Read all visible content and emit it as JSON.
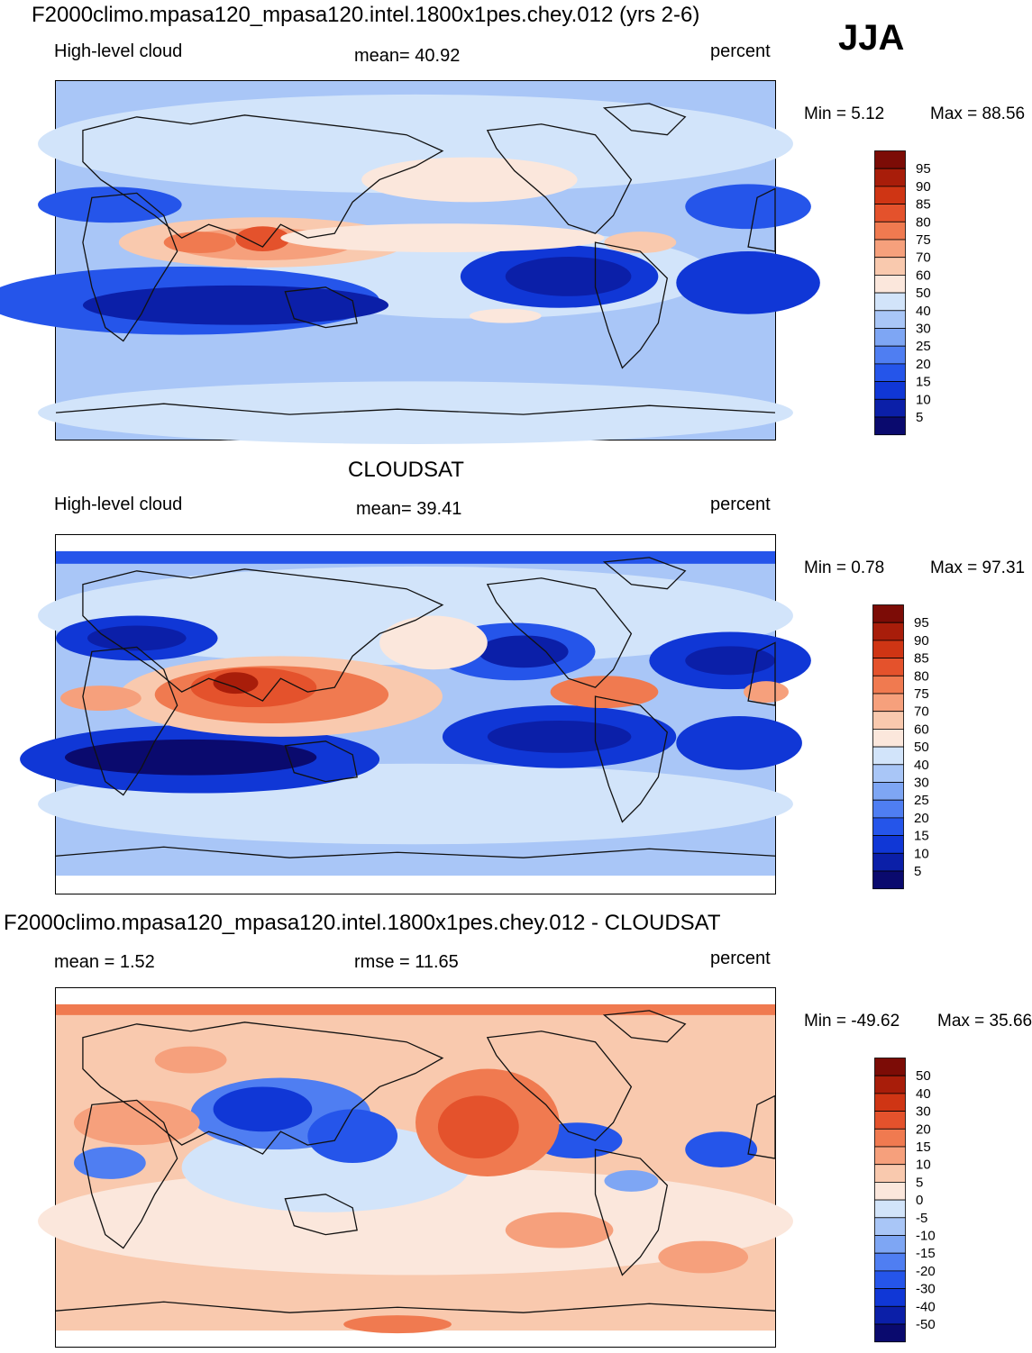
{
  "season": "JJA",
  "colors": {
    "scale": [
      "#0a0a6e",
      "#0b1fa8",
      "#1037d6",
      "#2555ea",
      "#4f7ef2",
      "#7ea6f4",
      "#a9c6f7",
      "#d2e4fa",
      "#fbe7dc",
      "#f9c9ae",
      "#f6a07c",
      "#f07a50",
      "#e4522c",
      "#cf3514",
      "#a81d0a",
      "#7c0c06"
    ],
    "coast": "#111111"
  },
  "panels": [
    {
      "title": "F2000climo.mpasa120_mpasa120.intel.1800x1pes.chey.012 (yrs 2-6)",
      "left_label": "High-level cloud",
      "center_label": "mean=  40.92",
      "right_label": "percent",
      "min_text": "Min =   5.12",
      "max_text": "Max =  88.56",
      "colorbar_ticks": [
        "95",
        "90",
        "85",
        "80",
        "75",
        "70",
        "60",
        "50",
        "40",
        "30",
        "25",
        "20",
        "15",
        "10",
        "5"
      ]
    },
    {
      "title": "CLOUDSAT",
      "left_label": "High-level cloud",
      "center_label": "mean=  39.41",
      "right_label": "percent",
      "min_text": "Min =   0.78",
      "max_text": "Max =  97.31",
      "colorbar_ticks": [
        "95",
        "90",
        "85",
        "80",
        "75",
        "70",
        "60",
        "50",
        "40",
        "30",
        "25",
        "20",
        "15",
        "10",
        "5"
      ]
    },
    {
      "title": "F2000climo.mpasa120_mpasa120.intel.1800x1pes.chey.012 - CLOUDSAT",
      "left_label": "mean =   1.52",
      "center_label": "rmse =  11.65",
      "right_label": "percent",
      "min_text": "Min = -49.62",
      "max_text": "Max =  35.66",
      "colorbar_ticks": [
        "50",
        "40",
        "30",
        "20",
        "15",
        "10",
        "5",
        "0",
        "-5",
        "-10",
        "-15",
        "-20",
        "-30",
        "-40",
        "-50"
      ]
    }
  ]
}
